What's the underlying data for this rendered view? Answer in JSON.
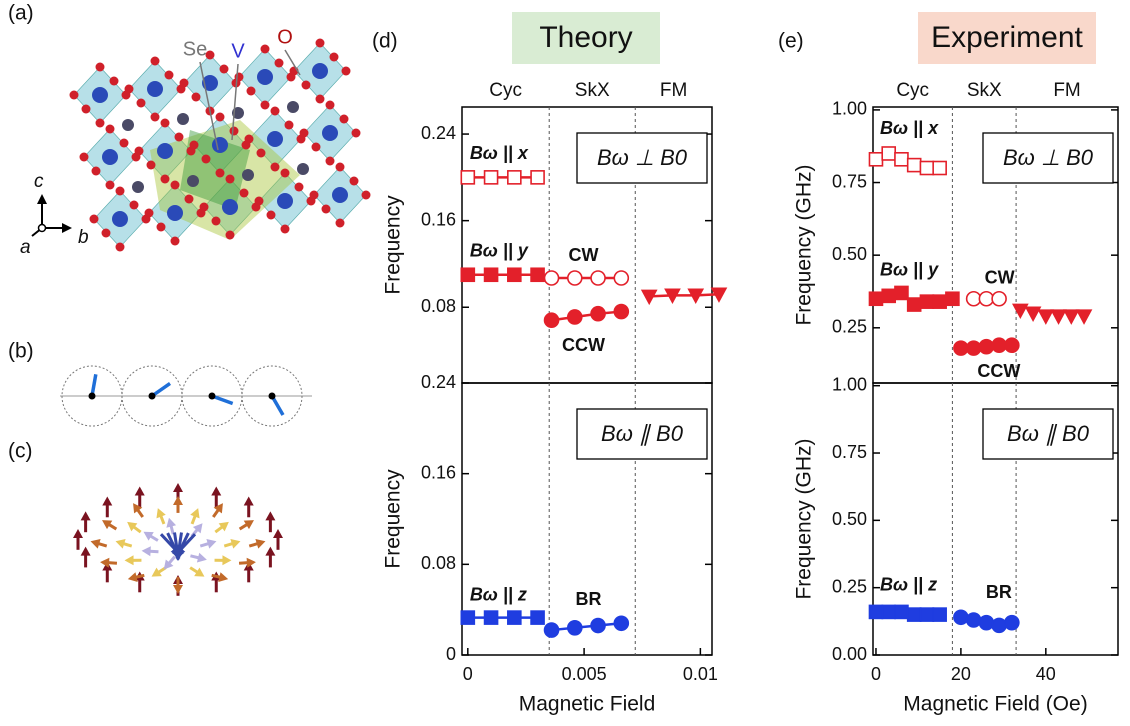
{
  "figure": {
    "panel_labels": [
      "(a)",
      "(b)",
      "(c)",
      "(d)",
      "(e)"
    ],
    "headers": [
      "Theory",
      "Experiment"
    ],
    "atom_labels": [
      "Se",
      "V",
      "O"
    ],
    "crystal_axes": [
      "a",
      "b",
      "c"
    ]
  },
  "chart_data": [
    {
      "type": "scatter",
      "line": true,
      "ylabel": "Frequency",
      "xlim": [
        -0.00025,
        0.0105
      ],
      "ylim": [
        0.01,
        0.265
      ],
      "yticks": [
        0.08,
        0.16,
        0.24
      ],
      "boundaries": [
        0.0035,
        0.0072
      ],
      "region_labels": [
        "Cyc",
        "SkX",
        "FM"
      ],
      "annotation": "Bω ⊥ B0",
      "series": [
        {
          "name": "Bω || x",
          "color": "#e3202a",
          "marker": "square-open",
          "x": [
            0,
            0.001,
            0.002,
            0.003
          ],
          "values": [
            0.2,
            0.2,
            0.2,
            0.2
          ]
        },
        {
          "name": "Bω || y",
          "color": "#e3202a",
          "marker": "square",
          "x": [
            0,
            0.001,
            0.002,
            0.003
          ],
          "values": [
            0.11,
            0.11,
            0.11,
            0.11
          ]
        },
        {
          "name": "CW",
          "color": "#e3202a",
          "marker": "circle-open",
          "x": [
            0.0036,
            0.0046,
            0.0056,
            0.0066
          ],
          "values": [
            0.107,
            0.107,
            0.107,
            0.107
          ]
        },
        {
          "name": "CCW",
          "color": "#e3202a",
          "marker": "circle",
          "x": [
            0.0036,
            0.0046,
            0.0056,
            0.0066
          ],
          "values": [
            0.068,
            0.071,
            0.074,
            0.076
          ]
        },
        {
          "color": "#e3202a",
          "marker": "triangle-down",
          "x": [
            0.0078,
            0.0088,
            0.0098,
            0.0108
          ],
          "values": [
            0.09,
            0.091,
            0.091,
            0.092
          ]
        }
      ]
    },
    {
      "type": "scatter",
      "line": true,
      "ylabel": "Frequency",
      "xlabel": "Magnetic Field",
      "xlim": [
        -0.00025,
        0.0105
      ],
      "ylim": [
        0,
        0.24
      ],
      "yticks": [
        0,
        0.08,
        0.16,
        0.24
      ],
      "xticks": [
        0,
        0.005,
        0.01
      ],
      "boundaries": [
        0.0035,
        0.0072
      ],
      "annotation": "Bω ∥ B0",
      "series": [
        {
          "name": "Bω || z",
          "color": "#1f3de0",
          "marker": "square",
          "x": [
            0,
            0.001,
            0.002,
            0.003
          ],
          "values": [
            0.033,
            0.033,
            0.033,
            0.033
          ]
        },
        {
          "name": "BR",
          "color": "#1f3de0",
          "marker": "circle",
          "x": [
            0.0036,
            0.0046,
            0.0056,
            0.0066
          ],
          "values": [
            0.022,
            0.024,
            0.026,
            0.028
          ]
        }
      ]
    },
    {
      "type": "scatter",
      "line": false,
      "ylabel": "Frequency (GHz)",
      "xlim": [
        -0.7,
        57
      ],
      "ylim": [
        0.06,
        1.01
      ],
      "yticks": [
        {
          "value": 0.25,
          "label": "0.25"
        },
        {
          "value": 0.5,
          "label": "0.50"
        },
        {
          "value": 0.75,
          "label": "0.75"
        },
        {
          "value": 1,
          "label": "1.00"
        }
      ],
      "boundaries": [
        18,
        33
      ],
      "region_labels": [
        "Cyc",
        "SkX",
        "FM"
      ],
      "annotation": "Bω ⊥ B0",
      "series": [
        {
          "name": "Bω || x",
          "color": "#e3202a",
          "marker": "square-open",
          "x": [
            0,
            3,
            6,
            9,
            12,
            15
          ],
          "values": [
            0.83,
            0.85,
            0.83,
            0.81,
            0.8,
            0.8
          ]
        },
        {
          "name": "Bω || y",
          "color": "#e3202a",
          "marker": "square",
          "x": [
            0,
            3,
            6,
            9,
            12,
            15,
            18
          ],
          "values": [
            0.35,
            0.36,
            0.37,
            0.33,
            0.34,
            0.34,
            0.35
          ]
        },
        {
          "name": "CW",
          "color": "#e3202a",
          "marker": "circle-open",
          "x": [
            23,
            26,
            29
          ],
          "values": [
            0.35,
            0.35,
            0.35
          ]
        },
        {
          "name": "CCW",
          "color": "#e3202a",
          "marker": "circle",
          "x": [
            20,
            23,
            26,
            29,
            32
          ],
          "values": [
            0.18,
            0.18,
            0.185,
            0.19,
            0.19
          ]
        },
        {
          "color": "#e3202a",
          "marker": "triangle-down",
          "x": [
            34,
            37,
            40,
            43,
            46,
            49
          ],
          "values": [
            0.31,
            0.3,
            0.29,
            0.29,
            0.29,
            0.29
          ]
        }
      ]
    },
    {
      "type": "scatter",
      "line": false,
      "ylabel": "Frequency (GHz)",
      "xlabel": "Magnetic Field (Oe)",
      "xlim": [
        -0.7,
        57
      ],
      "ylim": [
        0,
        1.01
      ],
      "yticks": [
        {
          "value": 0,
          "label": "0.00"
        },
        {
          "value": 0.25,
          "label": "0.25"
        },
        {
          "value": 0.5,
          "label": "0.50"
        },
        {
          "value": 0.75,
          "label": "0.75"
        },
        {
          "value": 1,
          "label": "1.00"
        }
      ],
      "xticks": [
        0,
        20,
        40
      ],
      "boundaries": [
        18,
        33
      ],
      "annotation": "Bω ∥ B0",
      "series": [
        {
          "name": "Bω || z",
          "color": "#1f3de0",
          "marker": "square",
          "x": [
            0,
            3,
            6,
            9,
            12,
            15
          ],
          "values": [
            0.16,
            0.16,
            0.16,
            0.15,
            0.15,
            0.15
          ]
        },
        {
          "name": "BR",
          "color": "#1f3de0",
          "marker": "circle",
          "x": [
            20,
            23,
            26,
            29,
            32
          ],
          "values": [
            0.14,
            0.13,
            0.12,
            0.11,
            0.12
          ]
        }
      ]
    }
  ]
}
